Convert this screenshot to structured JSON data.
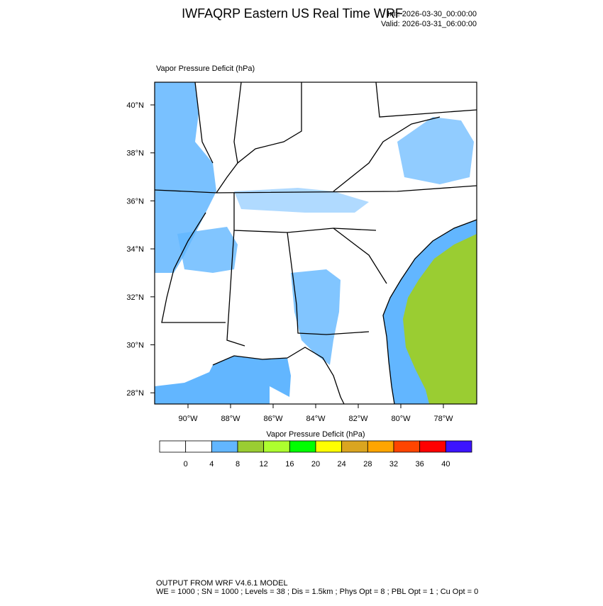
{
  "title": "IWFAQRP Eastern US Real Time WRF",
  "init": "Init: 2026-03-30_00:00:00",
  "valid": "Valid: 2026-03-31_06:00:00",
  "field_label": "Vapor Pressure Deficit   (hPa)",
  "lat_labels": [
    "40°N",
    "38°N",
    "36°N",
    "34°N",
    "32°N",
    "30°N",
    "28°N"
  ],
  "lon_labels": [
    "90°W",
    "88°W",
    "86°W",
    "84°W",
    "82°W",
    "80°W",
    "78°W"
  ],
  "colorbar": {
    "title": "Vapor Pressure Deficit  (hPa)",
    "levels": [
      0,
      4,
      8,
      12,
      16,
      20,
      24,
      28,
      32,
      36,
      40
    ],
    "colors": [
      "#ffffff",
      "#ffffff",
      "#62b6ff",
      "#9acd32",
      "#adff2f",
      "#00ff00",
      "#ffff00",
      "#daa520",
      "#ffa500",
      "#ff4500",
      "#ff0000",
      "#3c14ff"
    ]
  },
  "footer": [
    "OUTPUT FROM WRF V4.6.1 MODEL",
    "WE = 1000 ; SN = 1000 ; Levels = 38 ; Dis = 1.5km ; Phys Opt = 8 ; PBL Opt = 1 ; Cu Opt = 0"
  ]
}
